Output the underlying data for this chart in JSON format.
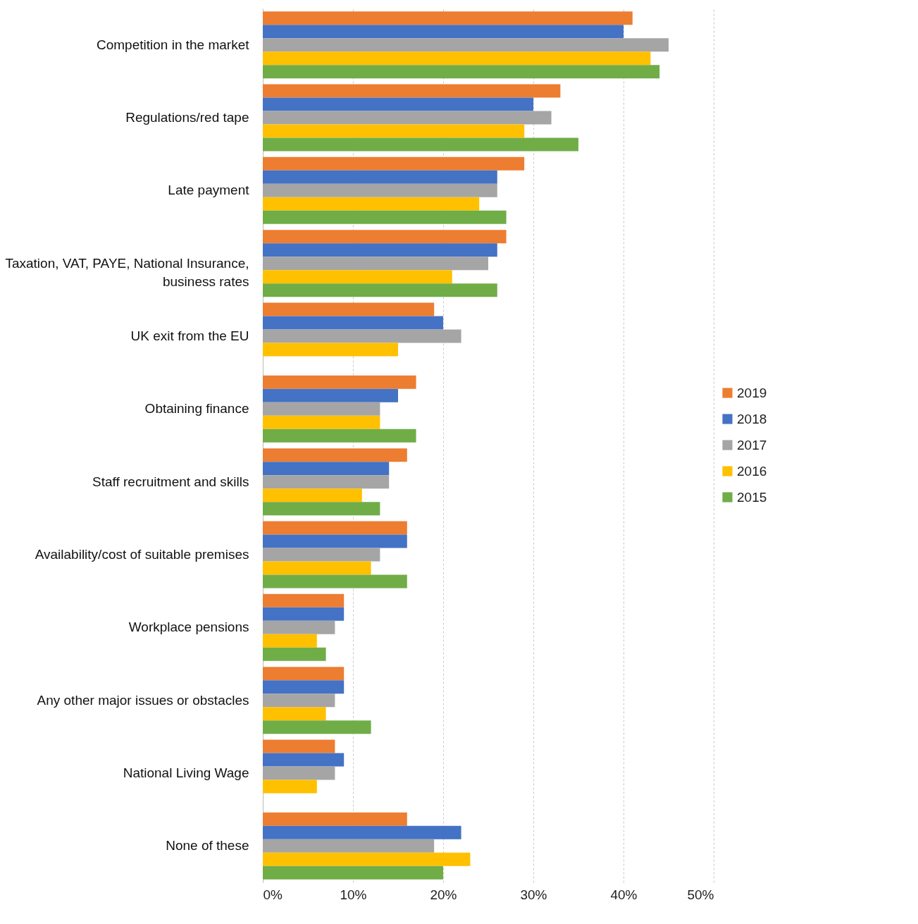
{
  "chart_data": {
    "type": "bar",
    "orientation": "horizontal",
    "categories": [
      "Competition in the market",
      "Regulations/red tape",
      "Late payment",
      "Taxation, VAT, PAYE, National Insurance, business rates",
      "UK exit from the EU",
      "Obtaining finance",
      "Staff recruitment and skills",
      "Availability/cost of suitable premises",
      "Workplace pensions",
      "Any other major issues or obstacles",
      "National Living Wage",
      "None of these"
    ],
    "series": [
      {
        "name": "2019",
        "color": "#ed7d31",
        "values": [
          41,
          33,
          29,
          27,
          19,
          17,
          16,
          16,
          9,
          9,
          8,
          16
        ]
      },
      {
        "name": "2018",
        "color": "#4472c4",
        "values": [
          40,
          30,
          26,
          26,
          20,
          15,
          14,
          16,
          9,
          9,
          9,
          22
        ]
      },
      {
        "name": "2017",
        "color": "#a5a5a5",
        "values": [
          45,
          32,
          26,
          25,
          22,
          13,
          14,
          13,
          8,
          8,
          8,
          19
        ]
      },
      {
        "name": "2016",
        "color": "#ffc000",
        "values": [
          43,
          29,
          24,
          21,
          15,
          13,
          11,
          12,
          6,
          7,
          6,
          23
        ]
      },
      {
        "name": "2015",
        "color": "#70ad47",
        "values": [
          44,
          35,
          27,
          26,
          null,
          17,
          13,
          16,
          7,
          12,
          null,
          20
        ]
      }
    ],
    "xlim": [
      0,
      50
    ],
    "xticks": [
      {
        "value": 0,
        "label": "0%"
      },
      {
        "value": 10,
        "label": "10%"
      },
      {
        "value": 20,
        "label": "20%"
      },
      {
        "value": 30,
        "label": "30%"
      },
      {
        "value": 40,
        "label": "40%"
      },
      {
        "value": 50,
        "label": "50%"
      }
    ],
    "grid": "x",
    "legend": "right"
  }
}
